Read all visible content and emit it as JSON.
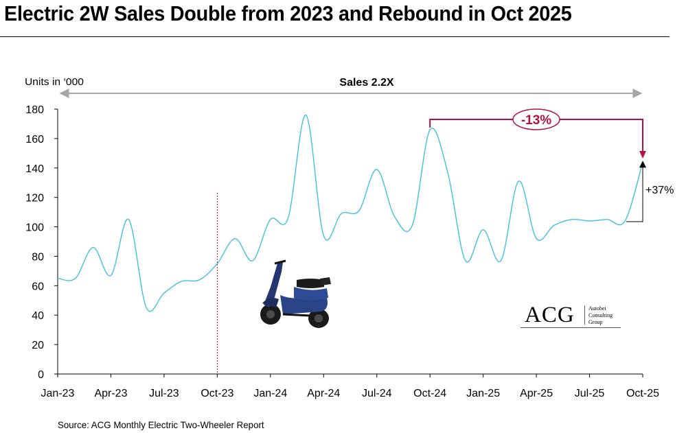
{
  "title": "Electric 2W Sales Double from 2023 and Rebound in Oct 2025",
  "source": "Source: ACG Monthly Electric Two-Wheeler Report",
  "logo": {
    "main": "ACG",
    "sub": [
      "Autobei",
      "Consulting",
      "Group"
    ]
  },
  "colors": {
    "line": "#3fbfe0",
    "accent": "#b0123f",
    "axis": "#000000",
    "divider": "#cc0000",
    "arrow": "#a6a6a6"
  },
  "chart_data": {
    "type": "line",
    "ylabel": "Units in ‘000",
    "ylim": [
      0,
      180
    ],
    "yticks": [
      0,
      20,
      40,
      60,
      80,
      100,
      120,
      140,
      160,
      180
    ],
    "x_tick_labels": [
      "Jan-23",
      "Apr-23",
      "Jul-23",
      "Oct-23",
      "Jan-24",
      "Apr-24",
      "Jul-24",
      "Oct-24",
      "Jan-25",
      "Apr-25",
      "Jul-25",
      "Oct-25"
    ],
    "x_tick_index": [
      0,
      3,
      6,
      9,
      12,
      15,
      18,
      21,
      24,
      27,
      30,
      33
    ],
    "x": [
      "Jan-23",
      "Feb-23",
      "Mar-23",
      "Apr-23",
      "May-23",
      "Jun-23",
      "Jul-23",
      "Aug-23",
      "Sep-23",
      "Oct-23",
      "Nov-23",
      "Dec-23",
      "Jan-24",
      "Feb-24",
      "Mar-24",
      "Apr-24",
      "May-24",
      "Jun-24",
      "Jul-24",
      "Aug-24",
      "Sep-24",
      "Oct-24",
      "Nov-24",
      "Dec-24",
      "Jan-25",
      "Feb-25",
      "Mar-25",
      "Apr-25",
      "May-25",
      "Jun-25",
      "Jul-25",
      "Aug-25",
      "Sep-25",
      "Oct-25"
    ],
    "series": [
      {
        "values": [
          65,
          65,
          86,
          67,
          105,
          45,
          55,
          63,
          64,
          75,
          92,
          77,
          105,
          106,
          176,
          94,
          109,
          111,
          139,
          107,
          101,
          166,
          137,
          77,
          98,
          77,
          131,
          92,
          101,
          105,
          104,
          105,
          104,
          144
        ]
      }
    ],
    "annotations": {
      "top_bracket": "Sales 2.2X",
      "decline": "-13%",
      "rebound": "+37%"
    },
    "grid": false,
    "legend": "none"
  }
}
